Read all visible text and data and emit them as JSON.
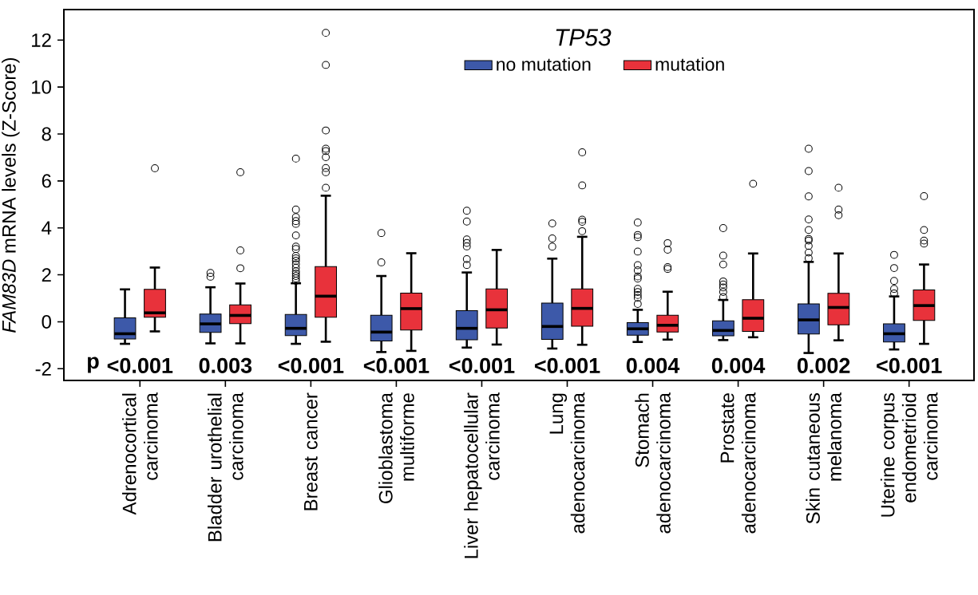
{
  "chart_data": {
    "type": "box",
    "ylabel": "*FAM83D* mRNA levels (Z-Score)",
    "legend_title": "TP53",
    "categories": [
      "Adrenocortical carcinoma",
      "Bladder urothelial carcinoma",
      "Breast cancer",
      "Glioblastoma multiforme",
      "Liver hepatocellular carcinoma",
      "Lung adenocarcinoma",
      "Stomach adenocarcinoma",
      "Prostate adenocarcinoma",
      "Skin cutaneous melanoma",
      "Uterine corpus endometrioid carcinoma"
    ],
    "series": [
      {
        "name": "no mutation",
        "color": "#3d59a9",
        "boxes": [
          {
            "low": -0.94,
            "q1": -0.73,
            "median": -0.51,
            "q3": 0.17,
            "high": 1.38
          },
          {
            "low": -0.92,
            "q1": -0.45,
            "median": -0.09,
            "q3": 0.33,
            "high": 1.47,
            "outliers": [
              1.92,
              2.08
            ]
          },
          {
            "low": -0.94,
            "q1": -0.59,
            "median": -0.28,
            "q3": 0.31,
            "high": 1.64,
            "outliers": [
              1.75,
              1.85,
              1.95,
              2.05,
              2.15,
              2.3,
              2.45,
              2.6,
              2.7,
              2.8,
              3.1,
              3.2,
              3.68,
              4.17,
              4.29,
              4.46,
              4.78,
              6.95
            ]
          },
          {
            "low": -1.29,
            "q1": -0.82,
            "median": -0.44,
            "q3": 0.28,
            "high": 1.95,
            "outliers": [
              2.53,
              3.78
            ]
          },
          {
            "low": -1.1,
            "q1": -0.77,
            "median": -0.28,
            "q3": 0.47,
            "high": 2.1,
            "outliers": [
              2.42,
              2.67,
              3.21,
              3.36,
              3.51,
              4.27,
              4.73
            ]
          },
          {
            "low": -1.14,
            "q1": -0.75,
            "median": -0.2,
            "q3": 0.8,
            "high": 2.69,
            "outliers": [
              3.2,
              3.55,
              4.19
            ]
          },
          {
            "low": -0.86,
            "q1": -0.57,
            "median": -0.3,
            "q3": -0.04,
            "high": 0.51,
            "outliers": [
              0.76,
              1.02,
              1.14,
              1.27,
              1.4,
              1.84,
              1.93,
              2.19,
              2.41,
              2.99,
              3.6,
              3.7,
              4.23
            ]
          },
          {
            "low": -0.78,
            "q1": -0.6,
            "median": -0.37,
            "q3": 0.04,
            "high": 0.93,
            "outliers": [
              1.05,
              1.27,
              1.46,
              1.59,
              1.72,
              2.44,
              2.82,
              3.99
            ]
          },
          {
            "low": -1.33,
            "q1": -0.52,
            "median": 0.08,
            "q3": 0.76,
            "high": 2.55,
            "outliers": [
              2.71,
              2.95,
              3.23,
              3.46,
              3.53,
              3.91,
              4.36,
              5.34,
              6.42,
              7.37
            ]
          },
          {
            "low": -1.18,
            "q1": -0.86,
            "median": -0.51,
            "q3": -0.09,
            "high": 1.08,
            "outliers": [
              1.21,
              1.4,
              1.74,
              2.29,
              2.85
            ]
          }
        ]
      },
      {
        "name": "mutation",
        "color": "#e8323b",
        "boxes": [
          {
            "low": -0.41,
            "q1": 0.19,
            "median": 0.38,
            "q3": 1.38,
            "high": 2.31,
            "outliers": [
              6.54
            ]
          },
          {
            "low": -0.92,
            "q1": -0.08,
            "median": 0.27,
            "q3": 0.72,
            "high": 1.63,
            "outliers": [
              2.28,
              3.04,
              6.37
            ]
          },
          {
            "low": -0.85,
            "q1": 0.19,
            "median": 1.09,
            "q3": 2.35,
            "high": 5.37,
            "outliers": [
              5.71,
              6.37,
              6.55,
              7.01,
              7.27,
              7.37,
              8.15,
              10.94,
              12.31
            ]
          },
          {
            "low": -1.24,
            "q1": -0.35,
            "median": 0.56,
            "q3": 1.22,
            "high": 2.92
          },
          {
            "low": -0.97,
            "q1": -0.27,
            "median": 0.51,
            "q3": 1.4,
            "high": 3.06
          },
          {
            "low": -0.98,
            "q1": -0.19,
            "median": 0.57,
            "q3": 1.4,
            "high": 3.62,
            "outliers": [
              3.86,
              4.26,
              4.35,
              5.81,
              7.22
            ]
          },
          {
            "low": -0.76,
            "q1": -0.44,
            "median": -0.15,
            "q3": 0.28,
            "high": 1.28,
            "outliers": [
              2.25,
              2.33,
              3.07,
              3.35
            ]
          },
          {
            "low": -0.66,
            "q1": -0.41,
            "median": 0.15,
            "q3": 0.94,
            "high": 2.91,
            "outliers": [
              5.88
            ]
          },
          {
            "low": -0.79,
            "q1": -0.13,
            "median": 0.61,
            "q3": 1.21,
            "high": 2.91,
            "outliers": [
              4.54,
              4.78,
              5.71
            ]
          },
          {
            "low": -0.94,
            "q1": 0.06,
            "median": 0.69,
            "q3": 1.36,
            "high": 2.44,
            "outliers": [
              3.33,
              3.46,
              3.91,
              5.35
            ]
          }
        ]
      }
    ],
    "ylim": [
      -2.5,
      13.3
    ],
    "yticks": [
      -2,
      0,
      2,
      4,
      6,
      8,
      10,
      12
    ],
    "annotations": [
      "p",
      "<0.001",
      "0.003",
      "<0.001",
      "<0.001",
      "<0.001",
      "<0.001",
      "0.004",
      "0.004",
      "0.002",
      "<0.001"
    ],
    "legend": "top",
    "marker": "circle",
    "grid": false
  }
}
